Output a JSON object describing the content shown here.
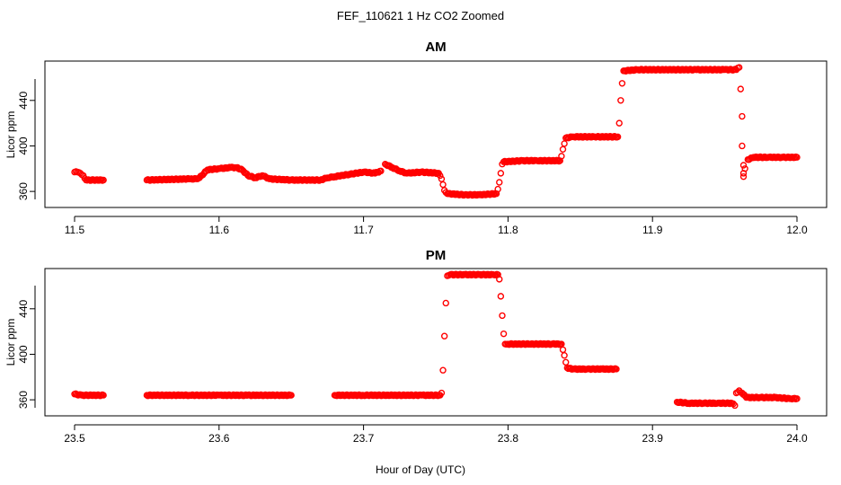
{
  "figure": {
    "title": "FEF_110621  1 Hz CO2 Zoomed",
    "xlabel": "Hour of Day (UTC)",
    "marker_color": "#ff0000"
  },
  "chart_data": [
    {
      "type": "scatter",
      "title": "AM",
      "ylabel": "Licor ppm",
      "xlim": [
        11.5,
        12.0
      ],
      "ylim": [
        353,
        473
      ],
      "x_ticks": [
        "11.5",
        "11.6",
        "11.7",
        "11.8",
        "11.9",
        "12.0"
      ],
      "y_ticks": [
        "360",
        "400",
        "440"
      ],
      "marker": "open-circle",
      "color": "#ff0000",
      "points": [
        [
          11.5,
          377
        ],
        [
          11.502,
          377
        ],
        [
          11.504,
          376
        ],
        [
          11.506,
          374
        ],
        [
          11.508,
          370
        ],
        [
          11.52,
          370
        ],
        [
          11.55,
          370
        ],
        [
          11.58,
          371
        ],
        [
          11.585,
          371
        ],
        [
          11.588,
          374
        ],
        [
          11.592,
          379
        ],
        [
          11.6,
          380
        ],
        [
          11.608,
          381
        ],
        [
          11.612,
          381
        ],
        [
          11.616,
          379
        ],
        [
          11.62,
          374
        ],
        [
          11.625,
          372
        ],
        [
          11.63,
          374
        ],
        [
          11.635,
          371
        ],
        [
          11.65,
          370
        ],
        [
          11.67,
          370
        ],
        [
          11.675,
          372
        ],
        [
          11.68,
          373
        ],
        [
          11.69,
          375
        ],
        [
          11.7,
          377
        ],
        [
          11.708,
          376
        ],
        [
          11.712,
          378
        ],
        [
          11.715,
          384
        ],
        [
          11.72,
          381
        ],
        [
          11.725,
          378
        ],
        [
          11.73,
          376
        ],
        [
          11.74,
          377
        ],
        [
          11.752,
          376
        ],
        [
          11.754,
          371
        ],
        [
          11.755,
          366
        ],
        [
          11.756,
          361
        ],
        [
          11.758,
          358
        ],
        [
          11.77,
          357
        ],
        [
          11.78,
          357
        ],
        [
          11.792,
          358
        ],
        [
          11.793,
          362
        ],
        [
          11.794,
          368
        ],
        [
          11.795,
          376
        ],
        [
          11.796,
          384
        ],
        [
          11.797,
          386
        ],
        [
          11.81,
          387
        ],
        [
          11.82,
          387
        ],
        [
          11.836,
          387
        ],
        [
          11.837,
          391
        ],
        [
          11.838,
          397
        ],
        [
          11.839,
          402
        ],
        [
          11.84,
          407
        ],
        [
          11.845,
          408
        ],
        [
          11.86,
          408
        ],
        [
          11.876,
          408
        ],
        [
          11.877,
          420
        ],
        [
          11.878,
          440
        ],
        [
          11.879,
          455
        ],
        [
          11.88,
          466
        ],
        [
          11.89,
          467
        ],
        [
          11.91,
          467
        ],
        [
          11.93,
          467
        ],
        [
          11.95,
          467
        ],
        [
          11.958,
          467
        ],
        [
          11.96,
          469
        ],
        [
          11.961,
          450
        ],
        [
          11.962,
          426
        ],
        [
          11.962,
          400
        ],
        [
          11.963,
          383
        ],
        [
          11.963,
          376
        ],
        [
          11.963,
          373
        ],
        [
          11.964,
          380
        ],
        [
          11.966,
          388
        ],
        [
          11.97,
          390
        ],
        [
          11.98,
          390
        ],
        [
          11.99,
          390
        ],
        [
          12.0,
          390
        ]
      ]
    },
    {
      "type": "scatter",
      "title": "PM",
      "ylabel": "Licor ppm",
      "xlim": [
        23.5,
        24.0
      ],
      "ylim": [
        353,
        473
      ],
      "x_ticks": [
        "23.5",
        "23.6",
        "23.7",
        "23.8",
        "23.9",
        "24.0"
      ],
      "y_ticks": [
        "360",
        "400",
        "440"
      ],
      "marker": "open-circle",
      "color": "#ff0000",
      "points": [
        [
          23.5,
          365
        ],
        [
          23.505,
          364
        ],
        [
          23.52,
          364
        ],
        [
          23.55,
          364
        ],
        [
          23.58,
          364
        ],
        [
          23.6,
          364
        ],
        [
          23.62,
          364
        ],
        [
          23.65,
          364
        ],
        [
          23.68,
          364
        ],
        [
          23.7,
          364
        ],
        [
          23.72,
          364
        ],
        [
          23.74,
          364
        ],
        [
          23.753,
          364
        ],
        [
          23.754,
          366
        ],
        [
          23.755,
          386
        ],
        [
          23.756,
          416
        ],
        [
          23.757,
          445
        ],
        [
          23.758,
          469
        ],
        [
          23.76,
          470
        ],
        [
          23.77,
          470
        ],
        [
          23.78,
          470
        ],
        [
          23.79,
          470
        ],
        [
          23.793,
          470
        ],
        [
          23.794,
          466
        ],
        [
          23.795,
          451
        ],
        [
          23.796,
          434
        ],
        [
          23.797,
          418
        ],
        [
          23.798,
          409
        ],
        [
          23.8,
          409
        ],
        [
          23.815,
          409
        ],
        [
          23.83,
          409
        ],
        [
          23.837,
          409
        ],
        [
          23.838,
          404
        ],
        [
          23.839,
          399
        ],
        [
          23.84,
          393
        ],
        [
          23.841,
          388
        ],
        [
          23.845,
          387
        ],
        [
          23.855,
          387
        ],
        [
          23.865,
          387
        ],
        [
          23.875,
          387
        ],
        [
          23.917,
          358
        ],
        [
          23.925,
          357
        ],
        [
          23.935,
          357
        ],
        [
          23.945,
          357
        ],
        [
          23.955,
          357
        ],
        [
          23.957,
          355
        ],
        [
          23.958,
          366
        ],
        [
          23.96,
          368
        ],
        [
          23.962,
          366
        ],
        [
          23.965,
          362
        ],
        [
          23.975,
          362
        ],
        [
          23.985,
          362
        ],
        [
          23.995,
          361
        ],
        [
          24.0,
          361
        ]
      ]
    }
  ]
}
